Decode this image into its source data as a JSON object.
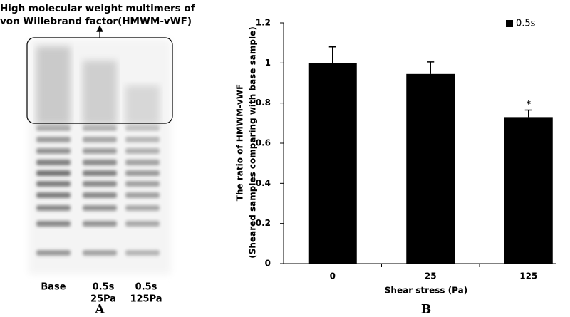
{
  "panel_a": {
    "annotation": [
      "High molecular weight multimers of",
      "von Willebrand factor(HMWM-vWF)"
    ],
    "lanes": [
      [
        "Base"
      ],
      [
        "0.5s",
        "25Pa"
      ],
      [
        "0.5s",
        "125Pa"
      ]
    ],
    "label": "A"
  },
  "chart_data": {
    "type": "bar",
    "panel_label": "B",
    "x_label": "Shear stress (Pa)",
    "y_label": [
      "The  ratio of HMWM-vWF",
      "(Sheared samples comparing with base sample)"
    ],
    "categories": [
      "0",
      "25",
      "125"
    ],
    "series": [
      {
        "name": "0.5s",
        "color": "#000000",
        "values": [
          1.0,
          0.945,
          0.73
        ],
        "errors": [
          0.08,
          0.06,
          0.035
        ]
      }
    ],
    "annotation": "*",
    "ylim": [
      0,
      1.2
    ],
    "yticks": [
      0,
      0.2,
      0.4,
      0.6,
      0.8,
      1,
      1.2
    ],
    "legend": "upper right"
  }
}
